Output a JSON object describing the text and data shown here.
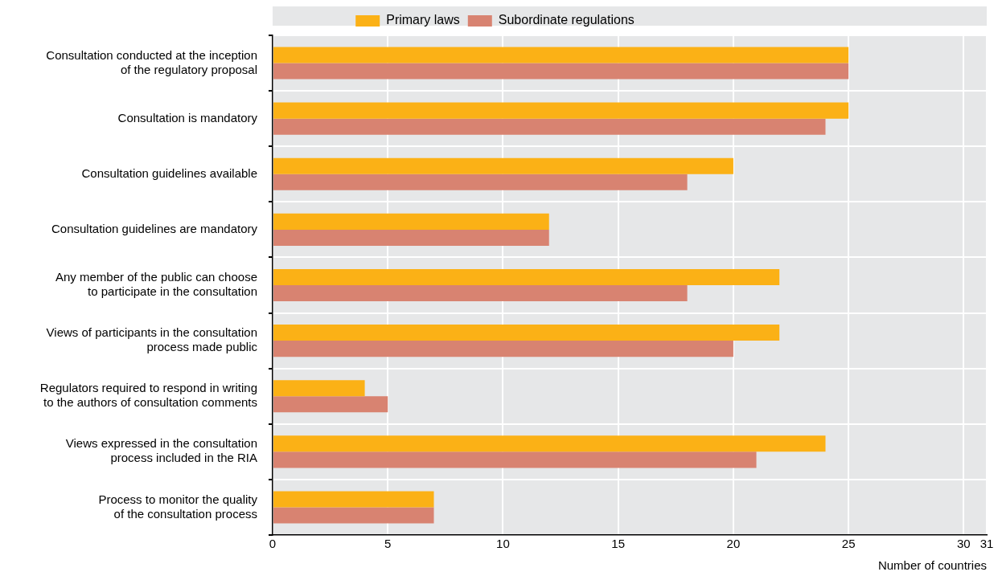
{
  "chart_data": {
    "type": "bar",
    "orientation": "horizontal",
    "xlabel": "Number of countries",
    "categories": [
      "Consultation conducted at the inception\nof the regulatory proposal",
      "Consultation is mandatory",
      "Consultation guidelines available",
      "Consultation guidelines are mandatory",
      "Any member of the public can choose\nto participate in the consultation",
      "Views of participants in the consultation\nprocess made public",
      "Regulators required to respond in writing\nto the authors of consultation comments",
      "Views expressed in the consultation\nprocess included in the RIA",
      "Process to monitor the quality\nof the consultation process"
    ],
    "series": [
      {
        "name": "Primary laws",
        "color": "#fbb116",
        "values": [
          25,
          25,
          20,
          12,
          22,
          22,
          4,
          24,
          7
        ]
      },
      {
        "name": "Subordinate regulations",
        "color": "#d88371",
        "values": [
          25,
          24,
          18,
          12,
          18,
          20,
          5,
          21,
          7
        ]
      }
    ],
    "xlim": [
      0,
      31
    ],
    "xticks": [
      0,
      5,
      10,
      15,
      20,
      25,
      30,
      31
    ],
    "grid": true,
    "legend": "top"
  }
}
